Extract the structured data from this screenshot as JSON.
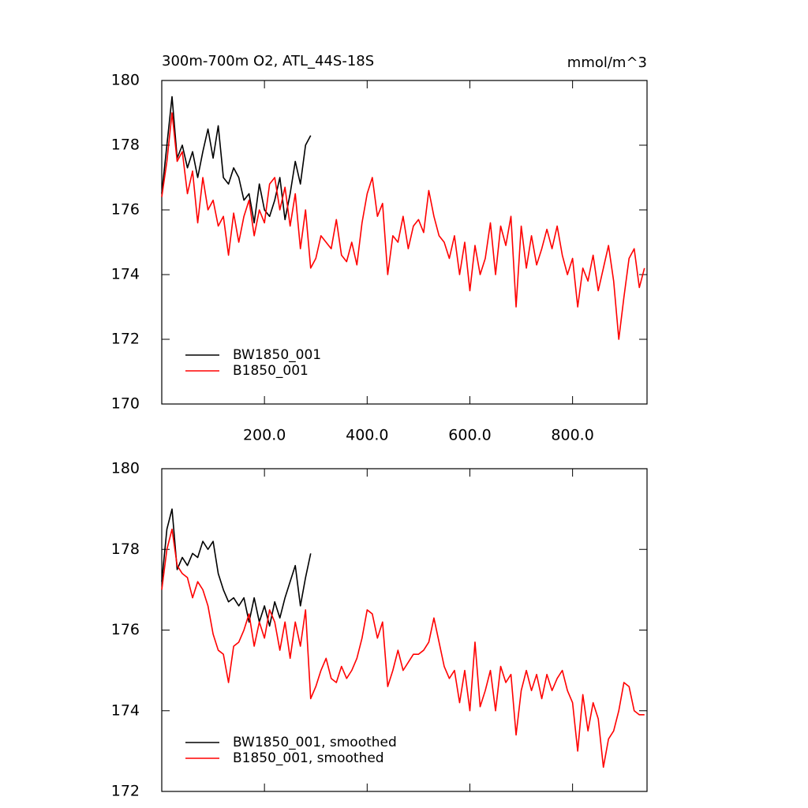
{
  "chart_data": [
    {
      "type": "line",
      "title": "300m-700m O2, ATL_44S-18S",
      "units": "mmol/m^3",
      "xlim": [
        0,
        945
      ],
      "ylim": [
        170,
        180
      ],
      "xticks": [
        {
          "value": 200,
          "label": "200.0"
        },
        {
          "value": 400,
          "label": "400.0"
        },
        {
          "value": 600,
          "label": "600.0"
        },
        {
          "value": 800,
          "label": "800.0"
        }
      ],
      "yticks": [
        170,
        172,
        174,
        176,
        178,
        180
      ],
      "legend": "lower left",
      "series": [
        {
          "name": "BW1850_001",
          "color": "#000000",
          "x": [
            0,
            10,
            20,
            30,
            40,
            50,
            60,
            70,
            80,
            90,
            100,
            110,
            120,
            130,
            140,
            150,
            160,
            170,
            180,
            190,
            200,
            210,
            220,
            230,
            240,
            250,
            260,
            270,
            280,
            290
          ],
          "values": [
            176.5,
            178.0,
            179.5,
            177.6,
            178.0,
            177.3,
            177.8,
            177.0,
            177.8,
            178.5,
            177.6,
            178.6,
            177.0,
            176.8,
            177.3,
            177.0,
            176.3,
            176.5,
            175.6,
            176.8,
            176.0,
            175.8,
            176.3,
            177.0,
            175.7,
            176.5,
            177.5,
            176.8,
            178.0,
            178.3
          ]
        },
        {
          "name": "B1850_001",
          "color": "#ff0000",
          "x": [
            0,
            10,
            20,
            30,
            40,
            50,
            60,
            70,
            80,
            90,
            100,
            110,
            120,
            130,
            140,
            150,
            160,
            170,
            180,
            190,
            200,
            210,
            220,
            230,
            240,
            250,
            260,
            270,
            280,
            290,
            300,
            310,
            320,
            330,
            340,
            350,
            360,
            370,
            380,
            390,
            400,
            410,
            420,
            430,
            440,
            450,
            460,
            470,
            480,
            490,
            500,
            510,
            520,
            530,
            540,
            550,
            560,
            570,
            580,
            590,
            600,
            610,
            620,
            630,
            640,
            650,
            660,
            670,
            680,
            690,
            700,
            710,
            720,
            730,
            740,
            750,
            760,
            770,
            780,
            790,
            800,
            810,
            820,
            830,
            840,
            850,
            860,
            870,
            880,
            890,
            900,
            910,
            920,
            930,
            940
          ],
          "values": [
            176.4,
            177.5,
            179.0,
            177.5,
            177.8,
            176.5,
            177.2,
            175.6,
            177.0,
            176.0,
            176.3,
            175.5,
            175.8,
            174.6,
            175.9,
            175.0,
            175.8,
            176.3,
            175.2,
            176.0,
            175.6,
            176.8,
            177.0,
            176.0,
            176.7,
            175.5,
            176.5,
            174.8,
            176.0,
            174.2,
            174.5,
            175.2,
            175.0,
            174.8,
            175.7,
            174.6,
            174.4,
            175.0,
            174.3,
            175.6,
            176.5,
            177.0,
            175.8,
            176.2,
            174.0,
            175.2,
            175.0,
            175.8,
            174.8,
            175.5,
            175.7,
            175.3,
            176.6,
            175.8,
            175.2,
            175.0,
            174.5,
            175.2,
            174.0,
            175.0,
            173.5,
            174.9,
            174.0,
            174.5,
            175.6,
            174.0,
            175.5,
            174.9,
            175.8,
            173.0,
            175.5,
            174.2,
            175.2,
            174.3,
            174.8,
            175.4,
            174.8,
            175.5,
            174.6,
            174.0,
            174.5,
            173.0,
            174.2,
            173.8,
            174.6,
            173.5,
            174.2,
            174.9,
            173.8,
            172.0,
            173.3,
            174.5,
            174.8,
            173.6,
            174.2
          ]
        }
      ]
    },
    {
      "type": "line",
      "xlim": [
        0,
        945
      ],
      "ylim": [
        172,
        180
      ],
      "xticks": [
        200,
        400,
        600,
        800
      ],
      "yticks": [
        172,
        174,
        176,
        178,
        180
      ],
      "legend": "lower left",
      "series": [
        {
          "name": "BW1850_001, smoothed",
          "color": "#000000",
          "x": [
            0,
            10,
            20,
            30,
            40,
            50,
            60,
            70,
            80,
            90,
            100,
            110,
            120,
            130,
            140,
            150,
            160,
            170,
            180,
            190,
            200,
            210,
            220,
            230,
            240,
            250,
            260,
            270,
            280,
            290
          ],
          "values": [
            177.2,
            178.5,
            179.0,
            177.5,
            177.8,
            177.6,
            177.9,
            177.8,
            178.2,
            178.0,
            178.2,
            177.4,
            177.0,
            176.7,
            176.8,
            176.6,
            176.8,
            176.2,
            176.8,
            176.2,
            176.6,
            176.1,
            176.7,
            176.3,
            176.8,
            177.2,
            177.6,
            176.6,
            177.3,
            177.9
          ]
        },
        {
          "name": "B1850_001, smoothed",
          "color": "#ff0000",
          "x": [
            0,
            10,
            20,
            30,
            40,
            50,
            60,
            70,
            80,
            90,
            100,
            110,
            120,
            130,
            140,
            150,
            160,
            170,
            180,
            190,
            200,
            210,
            220,
            230,
            240,
            250,
            260,
            270,
            280,
            290,
            300,
            310,
            320,
            330,
            340,
            350,
            360,
            370,
            380,
            390,
            400,
            410,
            420,
            430,
            440,
            450,
            460,
            470,
            480,
            490,
            500,
            510,
            520,
            530,
            540,
            550,
            560,
            570,
            580,
            590,
            600,
            610,
            620,
            630,
            640,
            650,
            660,
            670,
            680,
            690,
            700,
            710,
            720,
            730,
            740,
            750,
            760,
            770,
            780,
            790,
            800,
            810,
            820,
            830,
            840,
            850,
            860,
            870,
            880,
            890,
            900,
            910,
            920,
            930,
            940
          ],
          "values": [
            177.0,
            178.0,
            178.5,
            177.6,
            177.4,
            177.3,
            176.8,
            177.2,
            177.0,
            176.6,
            175.9,
            175.5,
            175.4,
            174.7,
            175.6,
            175.7,
            176.0,
            176.4,
            175.6,
            176.2,
            175.8,
            176.5,
            176.2,
            175.5,
            176.2,
            175.3,
            176.2,
            175.6,
            176.5,
            174.3,
            174.6,
            175.0,
            175.3,
            174.8,
            174.7,
            175.1,
            174.8,
            175.0,
            175.3,
            175.8,
            176.5,
            176.4,
            175.8,
            176.2,
            174.6,
            175.0,
            175.5,
            175.0,
            175.2,
            175.4,
            175.4,
            175.5,
            175.7,
            176.3,
            175.7,
            175.1,
            174.8,
            175.0,
            174.2,
            175.0,
            174.0,
            175.7,
            174.1,
            174.5,
            175.0,
            174.0,
            175.1,
            174.7,
            174.9,
            173.4,
            174.5,
            175.0,
            174.5,
            174.9,
            174.3,
            174.9,
            174.5,
            174.8,
            175.0,
            174.5,
            174.2,
            173.0,
            174.4,
            173.5,
            174.2,
            173.8,
            172.6,
            173.3,
            173.5,
            174.0,
            174.7,
            174.6,
            174.0,
            173.9,
            173.9
          ]
        }
      ]
    }
  ]
}
